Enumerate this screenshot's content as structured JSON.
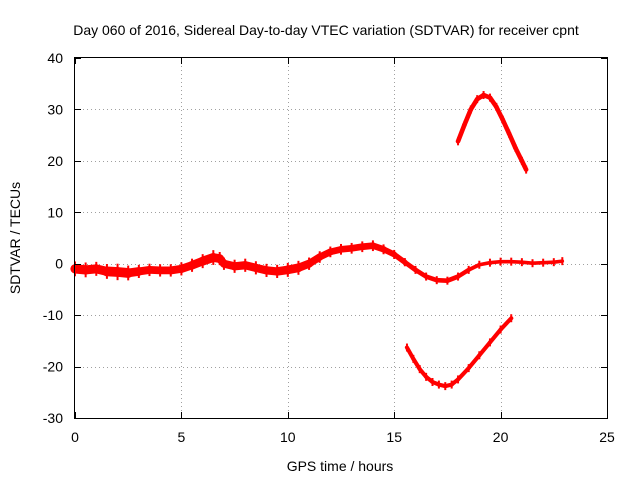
{
  "chart_data": {
    "type": "scatter",
    "title": "Day 060 of 2016, Sidereal Day-to-day VTEC variation (SDTVAR) for receiver cpnt",
    "xlabel": "GPS time / hours",
    "ylabel": "SDTVAR / TECUs",
    "xlim": [
      0,
      25
    ],
    "ylim": [
      -30,
      40
    ],
    "xticks": [
      0,
      5,
      10,
      15,
      20,
      25
    ],
    "yticks": [
      -30,
      -20,
      -10,
      0,
      10,
      20,
      30,
      40
    ],
    "xtick_labels": [
      "0",
      "5",
      "10",
      "15",
      "20",
      "25"
    ],
    "ytick_labels": [
      "-30",
      "-20",
      "-10",
      "0",
      "10",
      "20",
      "30",
      "40"
    ],
    "grid": true,
    "marker_color": "#ff0000",
    "series": [
      {
        "name": "main_trace",
        "x": [
          0.0,
          0.5,
          1.0,
          1.5,
          2.0,
          2.5,
          3.0,
          3.5,
          4.0,
          4.5,
          5.0,
          5.5,
          6.0,
          6.5,
          6.8,
          7.0,
          7.5,
          8.0,
          8.5,
          9.0,
          9.5,
          10.0,
          10.5,
          11.0,
          11.5,
          12.0,
          12.5,
          13.0,
          13.5,
          14.0,
          14.5,
          15.0,
          15.5,
          16.0,
          16.5,
          17.0,
          17.5,
          18.0,
          18.5,
          19.0,
          19.5,
          20.0,
          20.5,
          21.0,
          21.5,
          22.0,
          22.5,
          22.9
        ],
        "y": [
          -1.0,
          -1.2,
          -1.0,
          -1.5,
          -1.6,
          -1.8,
          -1.5,
          -1.2,
          -1.3,
          -1.3,
          -1.0,
          -0.3,
          0.5,
          1.2,
          1.0,
          0.0,
          -0.5,
          -0.3,
          -0.8,
          -1.3,
          -1.5,
          -1.2,
          -0.8,
          0.0,
          1.3,
          2.3,
          2.8,
          3.0,
          3.3,
          3.5,
          2.8,
          1.8,
          0.3,
          -1.2,
          -2.5,
          -3.2,
          -3.3,
          -2.5,
          -1.2,
          -0.2,
          0.2,
          0.4,
          0.4,
          0.3,
          0.1,
          0.2,
          0.3,
          0.5
        ],
        "thickness_tecu": [
          1.8,
          1.8,
          1.7,
          1.8,
          2.0,
          1.8,
          1.6,
          1.5,
          1.5,
          1.5,
          1.6,
          1.6,
          1.7,
          1.8,
          1.6,
          1.5,
          1.6,
          1.6,
          1.6,
          1.6,
          1.6,
          1.7,
          1.7,
          1.5,
          1.4,
          1.3,
          1.3,
          1.3,
          1.3,
          1.3,
          1.2,
          1.1,
          1.0,
          0.9,
          0.9,
          0.9,
          0.9,
          0.9,
          0.8,
          0.7,
          0.7,
          0.7,
          0.7,
          0.7,
          0.7,
          0.7,
          0.7,
          0.7
        ]
      },
      {
        "name": "upper_arc",
        "x": [
          18.0,
          18.3,
          18.6,
          18.9,
          19.2,
          19.5,
          19.8,
          20.1,
          20.4,
          20.7,
          21.0,
          21.2
        ],
        "y": [
          23.8,
          27.0,
          30.0,
          32.0,
          32.8,
          32.3,
          30.5,
          28.0,
          25.3,
          22.5,
          20.0,
          18.3
        ],
        "thickness_tecu": [
          0.9,
          0.9,
          0.9,
          0.9,
          0.9,
          0.9,
          0.9,
          0.9,
          0.9,
          0.9,
          0.9,
          0.9
        ]
      },
      {
        "name": "lower_arc",
        "x": [
          15.6,
          15.9,
          16.2,
          16.5,
          16.8,
          17.1,
          17.4,
          17.7,
          18.0,
          18.5,
          19.0,
          19.5,
          20.0,
          20.5
        ],
        "y": [
          -16.3,
          -18.5,
          -20.5,
          -22.0,
          -23.0,
          -23.5,
          -23.8,
          -23.5,
          -22.5,
          -20.3,
          -17.8,
          -15.3,
          -12.8,
          -10.6
        ],
        "thickness_tecu": [
          0.8,
          0.8,
          0.8,
          0.8,
          0.8,
          0.8,
          0.8,
          0.8,
          0.8,
          0.8,
          0.8,
          0.8,
          0.8,
          0.8
        ]
      }
    ]
  }
}
